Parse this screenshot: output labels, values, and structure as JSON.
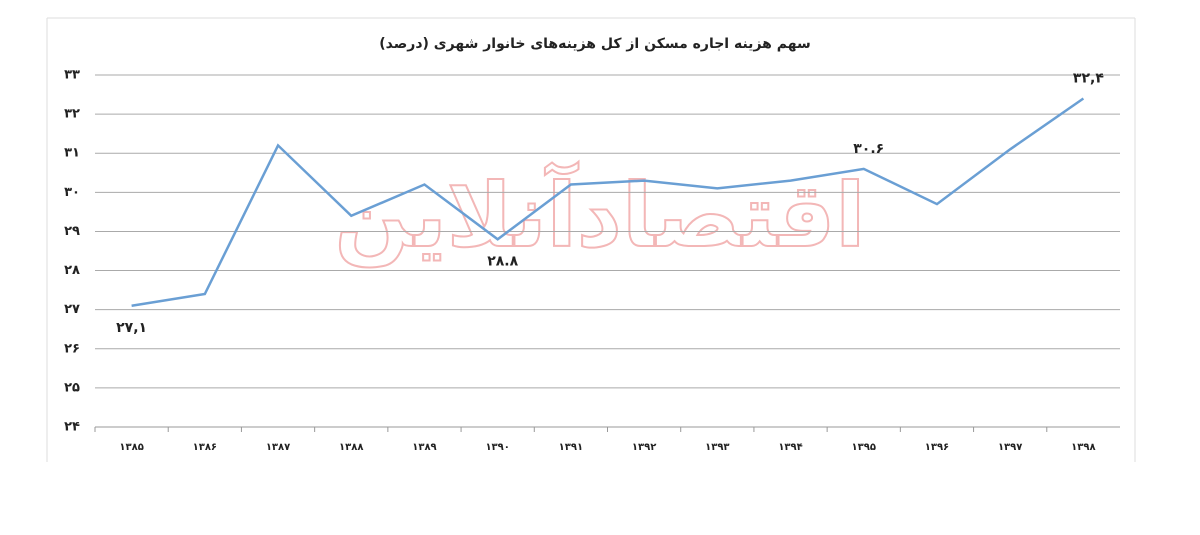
{
  "watermark": "اقتصادآنلاین",
  "chart_data": {
    "type": "line",
    "title": "سهم هزینه اجاره مسکن از کل هزینه‌های خانوار شهری (درصد)",
    "categories": [
      "۱۳۸۵",
      "۱۳۸۶",
      "۱۳۸۷",
      "۱۳۸۸",
      "۱۳۸۹",
      "۱۳۹۰",
      "۱۳۹۱",
      "۱۳۹۲",
      "۱۳۹۳",
      "۱۳۹۴",
      "۱۳۹۵",
      "۱۳۹۶",
      "۱۳۹۷",
      "۱۳۹۸"
    ],
    "series": [
      {
        "color": "#6a9fd4",
        "values": [
          27.1,
          27.4,
          31.2,
          29.4,
          30.2,
          28.8,
          30.2,
          30.3,
          30.1,
          30.3,
          30.6,
          29.7,
          31.1,
          32.4
        ],
        "value_labels": [
          "۲۷,۱",
          null,
          null,
          null,
          null,
          "۲۸.۸",
          null,
          null,
          null,
          null,
          "۳۰.۶",
          null,
          null,
          "۳۲,۴"
        ]
      }
    ],
    "ylim": [
      24,
      33
    ],
    "yticks": [
      {
        "value": 24,
        "label": "۲۴"
      },
      {
        "value": 25,
        "label": "۲۵"
      },
      {
        "value": 26,
        "label": "۲۶"
      },
      {
        "value": 27,
        "label": "۲۷"
      },
      {
        "value": 28,
        "label": "۲۸"
      },
      {
        "value": 29,
        "label": "۲۹"
      },
      {
        "value": 30,
        "label": "۳۰"
      },
      {
        "value": 31,
        "label": "۳۱"
      },
      {
        "value": 32,
        "label": "۳۲"
      },
      {
        "value": 33,
        "label": "۳۳"
      }
    ],
    "grid": true
  }
}
